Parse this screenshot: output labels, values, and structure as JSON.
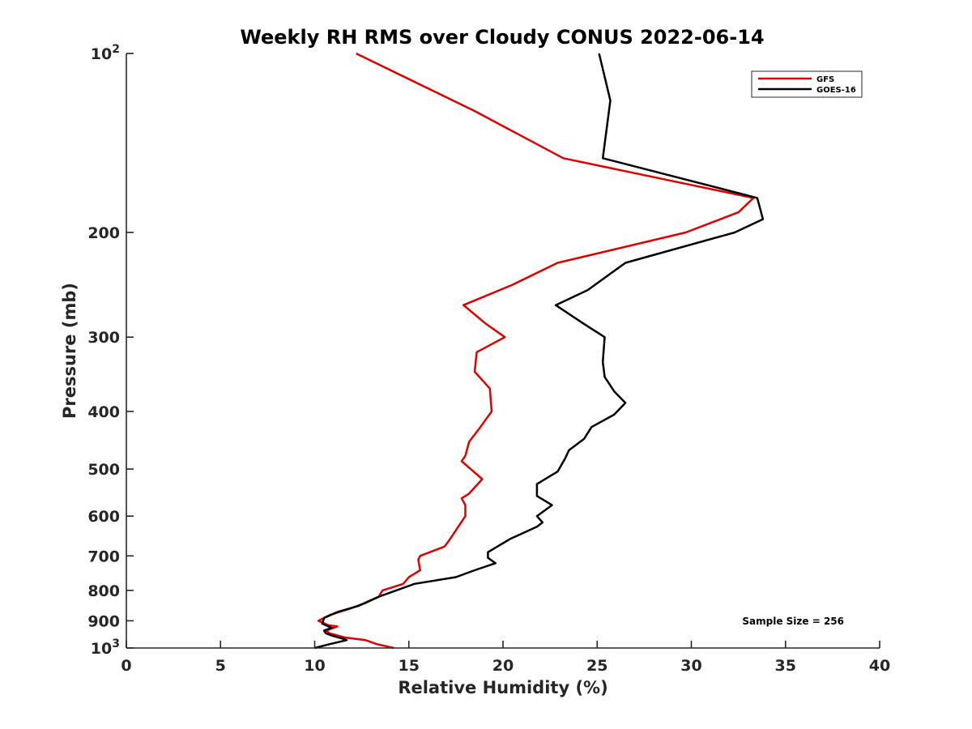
{
  "chart_data": {
    "type": "line",
    "title": "Weekly RH RMS over Cloudy CONUS 2022-06-14",
    "xlabel": "Relative Humidity (%)",
    "ylabel": "Pressure (mb)",
    "xlim": [
      0,
      40
    ],
    "ylim": [
      100,
      1000
    ],
    "yscale": "log",
    "yreversed": true,
    "x_ticks": [
      "0",
      "5",
      "10",
      "15",
      "20",
      "25",
      "30",
      "35",
      "40"
    ],
    "y_ticks": [
      {
        "value": 100,
        "base": "10",
        "exp": "2"
      },
      {
        "value": 200,
        "label": "200"
      },
      {
        "value": 300,
        "label": "300"
      },
      {
        "value": 400,
        "label": "400"
      },
      {
        "value": 500,
        "label": "500"
      },
      {
        "value": 600,
        "label": "600"
      },
      {
        "value": 700,
        "label": "700"
      },
      {
        "value": 800,
        "label": "800"
      },
      {
        "value": 900,
        "label": "900"
      },
      {
        "value": 1000,
        "base": "10",
        "exp": "3"
      }
    ],
    "legend_position": "top-right",
    "grid": false,
    "annotation": "Sample Size = 256",
    "series": [
      {
        "name": "GFS",
        "color": "#e00000",
        "points": [
          [
            12.2,
            100
          ],
          [
            18.5,
            125
          ],
          [
            23.2,
            150
          ],
          [
            33.3,
            175
          ],
          [
            32.5,
            185
          ],
          [
            29.7,
            200
          ],
          [
            22.9,
            225
          ],
          [
            20.5,
            245
          ],
          [
            17.9,
            265
          ],
          [
            19.1,
            285
          ],
          [
            20.1,
            300
          ],
          [
            18.6,
            318
          ],
          [
            18.5,
            343
          ],
          [
            19.3,
            366
          ],
          [
            19.4,
            400
          ],
          [
            18.8,
            425
          ],
          [
            18.2,
            450
          ],
          [
            18.0,
            475
          ],
          [
            17.8,
            485
          ],
          [
            18.9,
            520
          ],
          [
            18.2,
            550
          ],
          [
            17.8,
            560
          ],
          [
            18.0,
            575
          ],
          [
            18.0,
            600
          ],
          [
            17.2,
            655
          ],
          [
            16.9,
            675
          ],
          [
            15.6,
            700
          ],
          [
            15.5,
            710
          ],
          [
            15.6,
            740
          ],
          [
            15.0,
            760
          ],
          [
            14.7,
            780
          ],
          [
            13.6,
            800
          ],
          [
            13.4,
            820
          ],
          [
            12.7,
            840
          ],
          [
            11.8,
            860
          ],
          [
            10.8,
            880
          ],
          [
            10.2,
            900
          ],
          [
            10.7,
            915
          ],
          [
            11.2,
            920
          ],
          [
            10.6,
            935
          ],
          [
            10.8,
            945
          ],
          [
            11.6,
            960
          ],
          [
            12.7,
            970
          ],
          [
            13.3,
            985
          ],
          [
            14.2,
            1000
          ]
        ]
      },
      {
        "name": "GOES-16",
        "color": "#000000",
        "points": [
          [
            25.1,
            100
          ],
          [
            25.7,
            120
          ],
          [
            25.3,
            150
          ],
          [
            33.5,
            175
          ],
          [
            33.8,
            190
          ],
          [
            32.3,
            200
          ],
          [
            26.5,
            225
          ],
          [
            24.5,
            250
          ],
          [
            22.8,
            265
          ],
          [
            24.3,
            285
          ],
          [
            25.4,
            300
          ],
          [
            25.3,
            330
          ],
          [
            25.4,
            350
          ],
          [
            25.9,
            370
          ],
          [
            26.5,
            387
          ],
          [
            25.9,
            405
          ],
          [
            24.7,
            425
          ],
          [
            24.3,
            445
          ],
          [
            23.5,
            465
          ],
          [
            23.3,
            480
          ],
          [
            22.9,
            505
          ],
          [
            21.8,
            530
          ],
          [
            21.8,
            555
          ],
          [
            22.6,
            575
          ],
          [
            21.8,
            600
          ],
          [
            22.1,
            615
          ],
          [
            21.8,
            625
          ],
          [
            20.4,
            655
          ],
          [
            19.2,
            690
          ],
          [
            19.2,
            705
          ],
          [
            19.6,
            720
          ],
          [
            18.5,
            740
          ],
          [
            17.5,
            760
          ],
          [
            15.3,
            780
          ],
          [
            13.4,
            820
          ],
          [
            12.3,
            850
          ],
          [
            11.2,
            870
          ],
          [
            10.5,
            890
          ],
          [
            10.4,
            910
          ],
          [
            10.9,
            925
          ],
          [
            10.5,
            935
          ],
          [
            10.6,
            945
          ],
          [
            11.0,
            955
          ],
          [
            11.5,
            965
          ],
          [
            11.7,
            970
          ],
          [
            10.8,
            985
          ],
          [
            10.0,
            1000
          ]
        ]
      }
    ]
  }
}
